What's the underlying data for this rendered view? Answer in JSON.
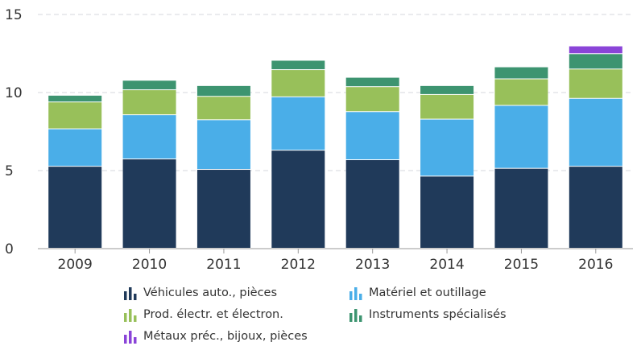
{
  "chart_data": {
    "type": "bar",
    "stacked": true,
    "categories": [
      "2009",
      "2010",
      "2011",
      "2012",
      "2013",
      "2014",
      "2015",
      "2016"
    ],
    "series": [
      {
        "name": "Véhicules auto., pièces",
        "color": "#203a5a",
        "values": [
          5.25,
          5.72,
          5.05,
          6.28,
          5.67,
          4.62,
          5.12,
          5.25
        ]
      },
      {
        "name": "Matériel et outillage",
        "color": "#4aaee8",
        "values": [
          2.4,
          2.83,
          3.18,
          3.42,
          3.08,
          3.65,
          4.03,
          4.35
        ]
      },
      {
        "name": "Prod. électr. et électron.",
        "color": "#98c05a",
        "values": [
          1.72,
          1.6,
          1.5,
          1.74,
          1.6,
          1.58,
          1.7,
          1.88
        ]
      },
      {
        "name": "Instruments spécialisés",
        "color": "#3d9470",
        "values": [
          0.43,
          0.61,
          0.69,
          0.6,
          0.6,
          0.57,
          0.77,
          0.98
        ]
      },
      {
        "name": "Métaux préc., bijoux, pièces",
        "color": "#8a44d8",
        "values": [
          0,
          0,
          0,
          0,
          0,
          0,
          0,
          0.5
        ]
      }
    ],
    "ylim": [
      0,
      15
    ],
    "yticks": [
      "0",
      "5",
      "10",
      "15"
    ],
    "grid": true,
    "legend_position": "bottom"
  }
}
